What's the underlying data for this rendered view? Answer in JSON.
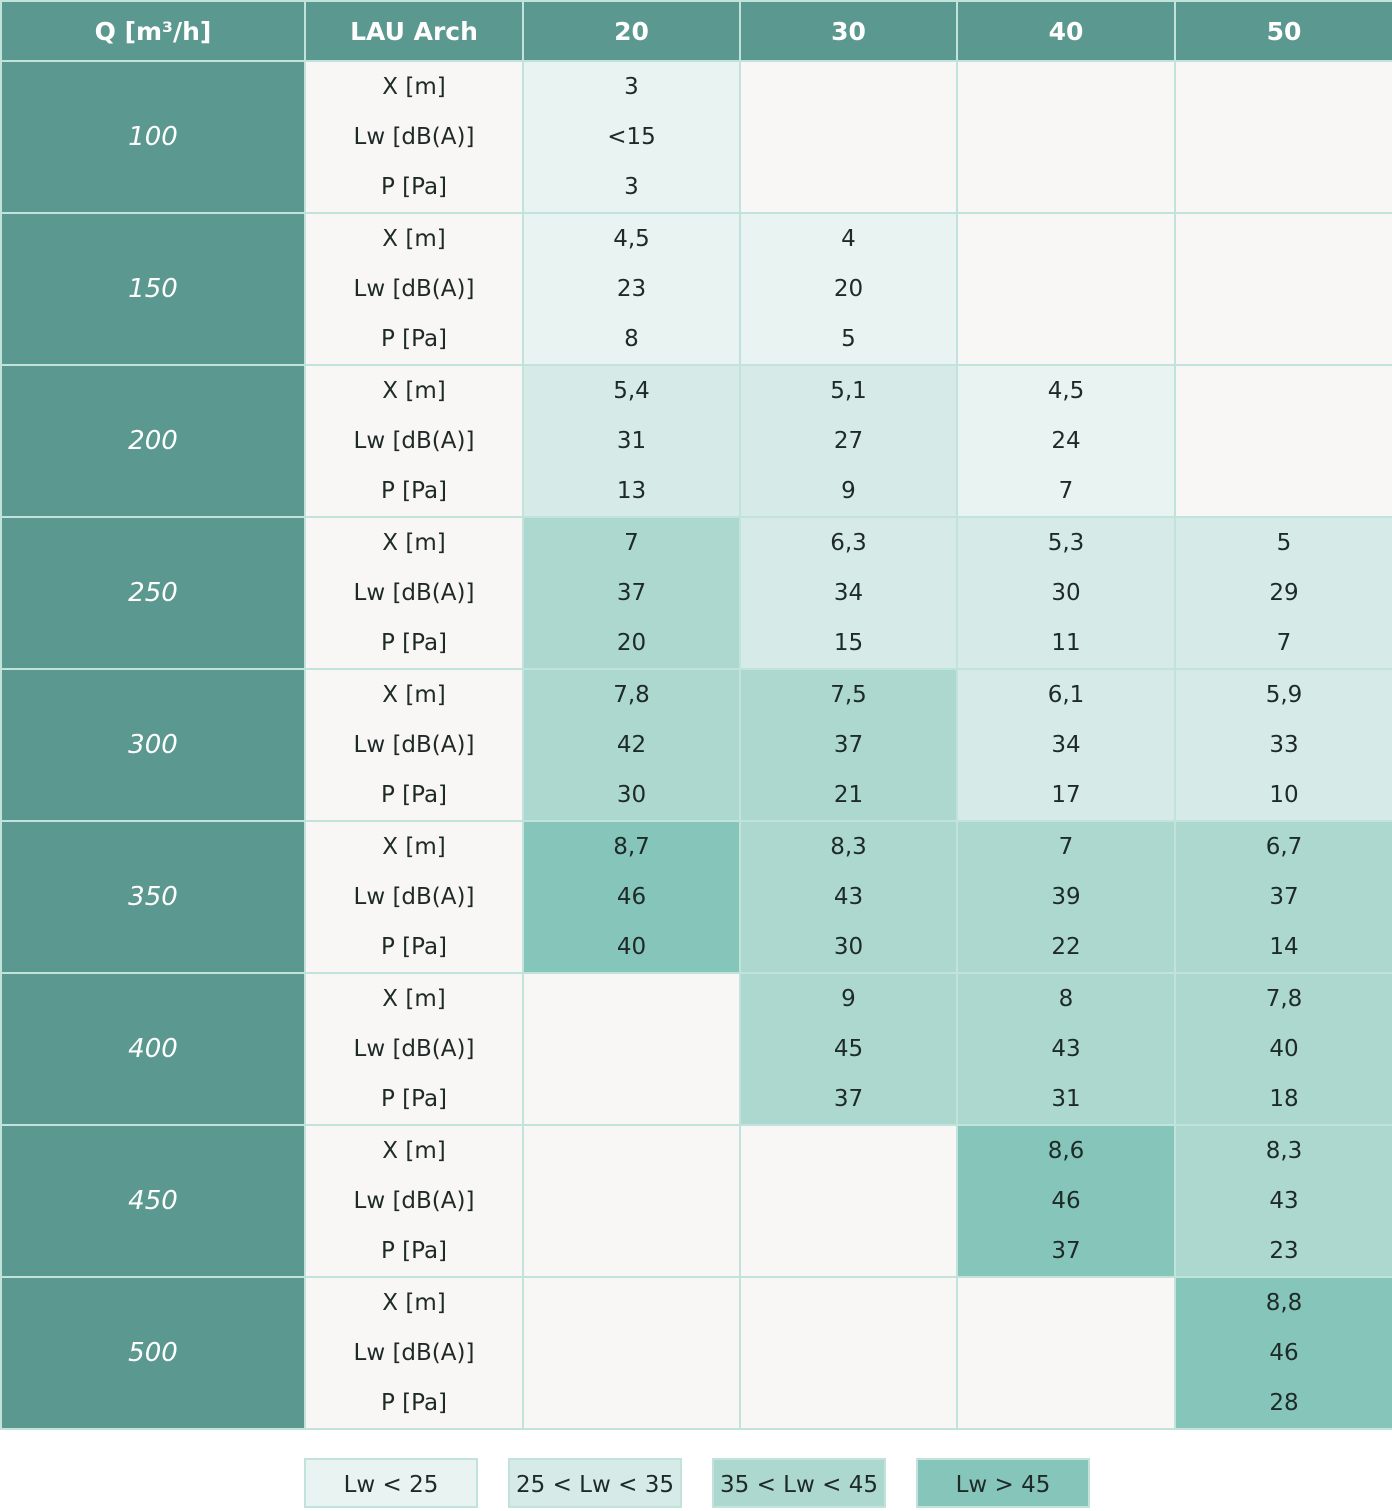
{
  "chart_data": {
    "type": "table",
    "title": "",
    "header": {
      "q_label": "Q [m³/h]",
      "model_label": "LAU Arch",
      "sizes": [
        "20",
        "30",
        "40",
        "50"
      ]
    },
    "row_metrics": [
      "X [m]",
      "Lw [dB(A)]",
      "P [Pa]"
    ],
    "rows": [
      {
        "q": "100",
        "cells": [
          {
            "x": "3",
            "lw": "<15",
            "p": "3",
            "level": 1
          },
          null,
          null,
          null
        ]
      },
      {
        "q": "150",
        "cells": [
          {
            "x": "4,5",
            "lw": "23",
            "p": "8",
            "level": 1
          },
          {
            "x": "4",
            "lw": "20",
            "p": "5",
            "level": 1
          },
          null,
          null
        ]
      },
      {
        "q": "200",
        "cells": [
          {
            "x": "5,4",
            "lw": "31",
            "p": "13",
            "level": 2
          },
          {
            "x": "5,1",
            "lw": "27",
            "p": "9",
            "level": 2
          },
          {
            "x": "4,5",
            "lw": "24",
            "p": "7",
            "level": 1
          },
          null
        ]
      },
      {
        "q": "250",
        "cells": [
          {
            "x": "7",
            "lw": "37",
            "p": "20",
            "level": 3
          },
          {
            "x": "6,3",
            "lw": "34",
            "p": "15",
            "level": 2
          },
          {
            "x": "5,3",
            "lw": "30",
            "p": "11",
            "level": 2
          },
          {
            "x": "5",
            "lw": "29",
            "p": "7",
            "level": 2
          }
        ]
      },
      {
        "q": "300",
        "cells": [
          {
            "x": "7,8",
            "lw": "42",
            "p": "30",
            "level": 3
          },
          {
            "x": "7,5",
            "lw": "37",
            "p": "21",
            "level": 3
          },
          {
            "x": "6,1",
            "lw": "34",
            "p": "17",
            "level": 2
          },
          {
            "x": "5,9",
            "lw": "33",
            "p": "10",
            "level": 2
          }
        ]
      },
      {
        "q": "350",
        "cells": [
          {
            "x": "8,7",
            "lw": "46",
            "p": "40",
            "level": 4
          },
          {
            "x": "8,3",
            "lw": "43",
            "p": "30",
            "level": 3
          },
          {
            "x": "7",
            "lw": "39",
            "p": "22",
            "level": 3
          },
          {
            "x": "6,7",
            "lw": "37",
            "p": "14",
            "level": 3
          }
        ]
      },
      {
        "q": "400",
        "cells": [
          null,
          {
            "x": "9",
            "lw": "45",
            "p": "37",
            "level": 3
          },
          {
            "x": "8",
            "lw": "43",
            "p": "31",
            "level": 3
          },
          {
            "x": "7,8",
            "lw": "40",
            "p": "18",
            "level": 3
          }
        ]
      },
      {
        "q": "450",
        "cells": [
          null,
          null,
          {
            "x": "8,6",
            "lw": "46",
            "p": "37",
            "level": 4
          },
          {
            "x": "8,3",
            "lw": "43",
            "p": "23",
            "level": 3
          }
        ]
      },
      {
        "q": "500",
        "cells": [
          null,
          null,
          null,
          {
            "x": "8,8",
            "lw": "46",
            "p": "28",
            "level": 4
          }
        ]
      }
    ],
    "legend": [
      {
        "label": "Lw < 25",
        "level": 1
      },
      {
        "label": "25 < Lw < 35",
        "level": 2
      },
      {
        "label": "35 < Lw < 45",
        "level": 3
      },
      {
        "label": "Lw > 45",
        "level": 4
      }
    ],
    "colors": {
      "header_bg": "#5b988f",
      "empty_bg": "#f8f7f5",
      "level1": "#e9f4f2",
      "level2": "#d6ebe7",
      "level3": "#acd8cf",
      "level4": "#86c5ba",
      "grid": "#c2e2dc"
    }
  }
}
